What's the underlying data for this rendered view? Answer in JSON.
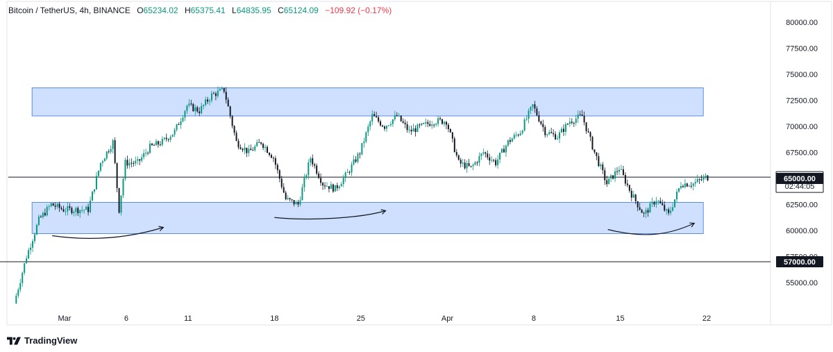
{
  "legend": {
    "symbol": "Bitcoin / TetherUS, 4h, BINANCE",
    "open_label": "O",
    "open": "65234.02",
    "high_label": "H",
    "high": "65375.41",
    "low_label": "L",
    "low": "64835.95",
    "close_label": "C",
    "close": "65124.09",
    "change": "−109.92 (−0.17%)"
  },
  "brand": {
    "name": "TradingView",
    "logo_icon": "tradingview-logo-icon"
  },
  "colors": {
    "up": "#089981",
    "down": "#131722",
    "zone_fill": "#cfe0ff",
    "zone_border": "#5b8ce6",
    "grid": "#e0e3eb",
    "badge_dark": "#131722"
  },
  "chart_data": {
    "type": "candlestick",
    "symbol": "Bitcoin / TetherUS",
    "interval": "4h",
    "exchange": "BINANCE",
    "y_ticks": [
      "80000.00",
      "77500.00",
      "75000.00",
      "72500.00",
      "70000.00",
      "67500.00",
      "65000.00",
      "62500.00",
      "60000.00",
      "57500.00",
      "55000.00"
    ],
    "ylim": [
      52500,
      81000
    ],
    "x_ticks": [
      "Mar",
      "6",
      "11",
      "18",
      "25",
      "Apr",
      "8",
      "15",
      "22"
    ],
    "x_tick_dates": [
      "2024-03-01",
      "2024-03-06",
      "2024-03-11",
      "2024-03-18",
      "2024-03-25",
      "2024-04-01",
      "2024-04-08",
      "2024-04-15",
      "2024-04-22"
    ],
    "price_path": [
      [
        "2024-02-26",
        53000
      ],
      [
        "2024-02-27",
        57500
      ],
      [
        "2024-02-28",
        61000
      ],
      [
        "2024-02-29",
        62500
      ],
      [
        "2024-03-01",
        62000
      ],
      [
        "2024-03-03",
        62000
      ],
      [
        "2024-03-04",
        66500
      ],
      [
        "2024-03-05",
        68500
      ],
      [
        "2024-03-05T12",
        62000
      ],
      [
        "2024-03-06",
        66500
      ],
      [
        "2024-03-07",
        66500
      ],
      [
        "2024-03-08",
        68000
      ],
      [
        "2024-03-09",
        68500
      ],
      [
        "2024-03-10",
        69500
      ],
      [
        "2024-03-11",
        72000
      ],
      [
        "2024-03-12",
        71500
      ],
      [
        "2024-03-13",
        73000
      ],
      [
        "2024-03-14",
        73500
      ],
      [
        "2024-03-15",
        68500
      ],
      [
        "2024-03-16",
        67500
      ],
      [
        "2024-03-17",
        68500
      ],
      [
        "2024-03-18",
        67000
      ],
      [
        "2024-03-19",
        63000
      ],
      [
        "2024-03-20",
        62500
      ],
      [
        "2024-03-21",
        67000
      ],
      [
        "2024-03-22",
        64500
      ],
      [
        "2024-03-23",
        64000
      ],
      [
        "2024-03-24",
        65500
      ],
      [
        "2024-03-25",
        67500
      ],
      [
        "2024-03-26",
        71000
      ],
      [
        "2024-03-27",
        70000
      ],
      [
        "2024-03-28",
        71000
      ],
      [
        "2024-03-29",
        69500
      ],
      [
        "2024-03-30",
        70000
      ],
      [
        "2024-03-31",
        70500
      ],
      [
        "2024-04-01",
        70500
      ],
      [
        "2024-04-02",
        66500
      ],
      [
        "2024-04-03",
        66000
      ],
      [
        "2024-04-04",
        67500
      ],
      [
        "2024-04-05",
        66500
      ],
      [
        "2024-04-06",
        68500
      ],
      [
        "2024-04-07",
        69500
      ],
      [
        "2024-04-08",
        72000
      ],
      [
        "2024-04-09",
        69500
      ],
      [
        "2024-04-10",
        69000
      ],
      [
        "2024-04-11",
        70500
      ],
      [
        "2024-04-12",
        71000
      ],
      [
        "2024-04-13",
        67500
      ],
      [
        "2024-04-14",
        64500
      ],
      [
        "2024-04-15",
        66000
      ],
      [
        "2024-04-16",
        63500
      ],
      [
        "2024-04-17",
        61500
      ],
      [
        "2024-04-18",
        63000
      ],
      [
        "2024-04-19",
        61500
      ],
      [
        "2024-04-20",
        64500
      ],
      [
        "2024-04-21",
        64500
      ],
      [
        "2024-04-22",
        65100
      ]
    ],
    "zones": [
      {
        "start": "2024-02-29",
        "end": "2024-04-21",
        "bottom": 71000,
        "top": 73700
      },
      {
        "start": "2024-02-29",
        "end": "2024-04-21",
        "bottom": 59700,
        "top": 62700
      }
    ],
    "horizontal_lines": [
      {
        "price": 65124.09,
        "from": "2024-02-26",
        "color": "#131722"
      },
      {
        "price": 57000,
        "from": "2024-02-25",
        "color": "#131722"
      }
    ],
    "arrows": [
      {
        "points": [
          [
            "2024-02-29",
            59500
          ],
          [
            "2024-03-03",
            59000
          ],
          [
            "2024-03-06",
            59200
          ],
          [
            "2024-03-09",
            60300
          ]
        ]
      },
      {
        "points": [
          [
            "2024-03-18",
            61250
          ],
          [
            "2024-03-21",
            60900
          ],
          [
            "2024-03-25",
            61200
          ],
          [
            "2024-03-27",
            61900
          ]
        ]
      },
      {
        "points": [
          [
            "2024-04-14",
            60100
          ],
          [
            "2024-04-17",
            59200
          ],
          [
            "2024-04-19",
            59600
          ],
          [
            "2024-04-21",
            60700
          ]
        ]
      }
    ],
    "price_badges": [
      {
        "price": 65124.09,
        "label": "65124.09",
        "sublabel": "02:44:05",
        "style": "line"
      },
      {
        "price": 65000,
        "label": "65000.00",
        "style": "dark"
      },
      {
        "price": 57000,
        "label": "57000.00",
        "style": "dark"
      }
    ],
    "last_price": "65124.09",
    "countdown": "02:44:05"
  }
}
